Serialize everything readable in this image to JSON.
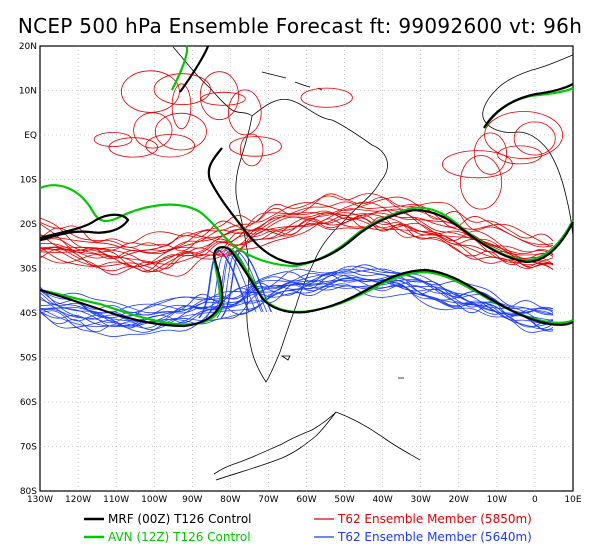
{
  "title": "NCEP 500 hPa Ensemble Forecast  ft: 99092600 vt: 96h",
  "map": {
    "lat_labels": [
      "20N",
      "10N",
      "EQ",
      "10S",
      "20S",
      "30S",
      "40S",
      "50S",
      "60S",
      "70S",
      "80S"
    ],
    "lon_labels": [
      "130W",
      "120W",
      "110W",
      "100W",
      "90W",
      "80W",
      "70W",
      "60W",
      "50W",
      "40W",
      "30W",
      "20W",
      "10W",
      "0",
      "10E"
    ],
    "lat_range": [
      -80,
      20
    ],
    "lon_range": [
      -130,
      10
    ]
  },
  "legend": [
    {
      "label": "MRF (00Z) T126 Control",
      "color": "#000000"
    },
    {
      "label": "AVN (12Z) T126 Control",
      "color": "#00c800"
    },
    {
      "label": "T62 Ensemble Member (5850m)",
      "color": "#e00000"
    },
    {
      "label": "T62 Ensemble Member (5640m)",
      "color": "#1a3cff"
    }
  ]
}
